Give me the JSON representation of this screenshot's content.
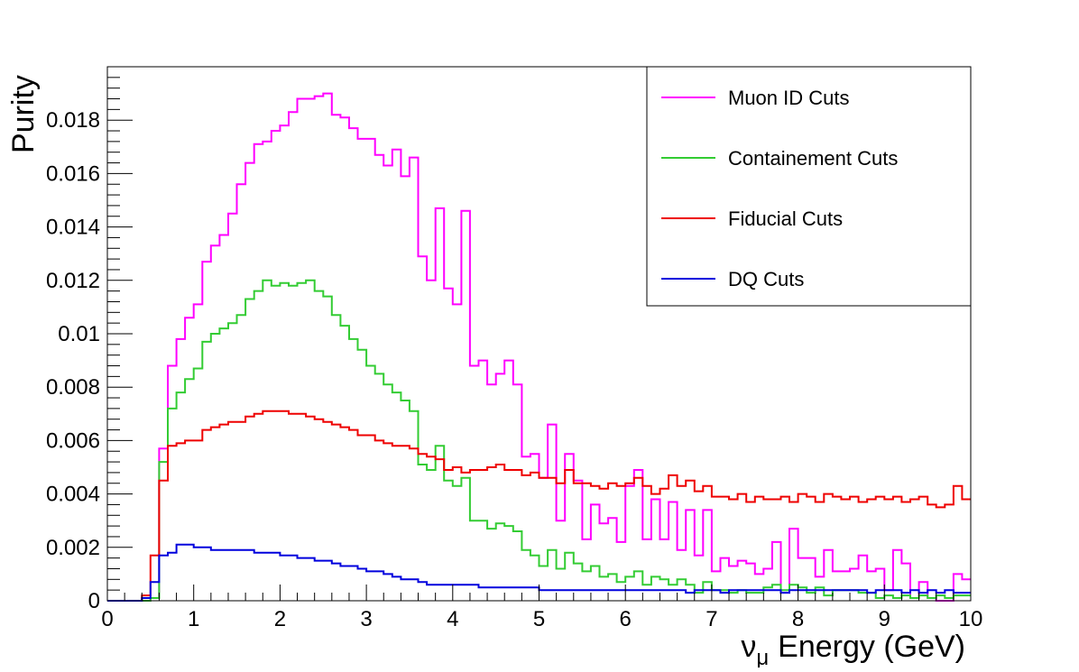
{
  "chart_data": {
    "type": "line",
    "style": "step-histogram",
    "title": "",
    "xlabel": "Energy (GeV)",
    "xlabel_symbol": "ν",
    "xlabel_subscript": "μ",
    "ylabel": "Purity",
    "xlim": [
      0,
      10
    ],
    "ylim": [
      0,
      0.02
    ],
    "x_ticks": [
      0,
      1,
      2,
      3,
      4,
      5,
      6,
      7,
      8,
      9,
      10
    ],
    "x_tick_labels": [
      "0",
      "1",
      "2",
      "3",
      "4",
      "5",
      "6",
      "7",
      "8",
      "9",
      "10"
    ],
    "y_ticks": [
      0,
      0.002,
      0.004,
      0.006,
      0.008,
      0.01,
      0.012,
      0.014,
      0.016,
      0.018
    ],
    "y_tick_labels": [
      "0",
      "0.002",
      "0.004",
      "0.006",
      "0.008",
      "0.01",
      "0.012",
      "0.014",
      "0.016",
      "0.018"
    ],
    "bin_width": 0.1,
    "grid": false,
    "legend_position": "top-right",
    "series": [
      {
        "name": "Muon ID Cuts",
        "color": "#ff00ff",
        "values": [
          0,
          0,
          0,
          0,
          0,
          0.0001,
          0.0057,
          0.0088,
          0.0098,
          0.0106,
          0.0111,
          0.0127,
          0.0133,
          0.0137,
          0.0145,
          0.0156,
          0.0164,
          0.0171,
          0.0172,
          0.0176,
          0.0178,
          0.0183,
          0.0188,
          0.0188,
          0.0189,
          0.019,
          0.0182,
          0.0181,
          0.0177,
          0.0173,
          0.0173,
          0.0167,
          0.0163,
          0.0169,
          0.0159,
          0.0166,
          0.0129,
          0.012,
          0.0147,
          0.0117,
          0.0111,
          0.0146,
          0.0088,
          0.009,
          0.0081,
          0.0085,
          0.009,
          0.0081,
          0.0054,
          0.0055,
          0.0046,
          0.0066,
          0.003,
          0.0055,
          0.0045,
          0.0023,
          0.0036,
          0.0029,
          0.0031,
          0.0022,
          0.0043,
          0.0049,
          0.0023,
          0.0038,
          0.0023,
          0.0037,
          0.0019,
          0.0034,
          0.0017,
          0.0034,
          0.0011,
          0.0016,
          0.0013,
          0.0015,
          0.0014,
          0.001,
          0.0012,
          0.0022,
          0.0003,
          0.0027,
          0.0016,
          0.0016,
          0.0009,
          0.0019,
          0.0011,
          0.0011,
          0.0012,
          0.0017,
          0.0011,
          0.0012,
          0.0004,
          0.0019,
          0.0014,
          0.0001,
          0.0007,
          0.0001,
          0,
          0,
          0.001,
          0.0008
        ]
      },
      {
        "name": "Containement Cuts",
        "color": "#33cc33",
        "values": [
          0,
          0,
          0,
          0,
          0,
          0.0001,
          0.0052,
          0.0072,
          0.0078,
          0.0083,
          0.0087,
          0.0097,
          0.01,
          0.0102,
          0.0104,
          0.0107,
          0.0113,
          0.0116,
          0.012,
          0.0118,
          0.0119,
          0.0118,
          0.0119,
          0.012,
          0.0116,
          0.0114,
          0.0107,
          0.0103,
          0.0098,
          0.0094,
          0.0088,
          0.0085,
          0.0081,
          0.0078,
          0.0075,
          0.0071,
          0.0051,
          0.0049,
          0.0058,
          0.0045,
          0.0043,
          0.0046,
          0.003,
          0.003,
          0.0027,
          0.0029,
          0.0028,
          0.0026,
          0.0019,
          0.0017,
          0.0013,
          0.0019,
          0.0012,
          0.0018,
          0.0014,
          0.0011,
          0.0013,
          0.0009,
          0.001,
          0.0007,
          0.0009,
          0.0011,
          0.0006,
          0.0009,
          0.0008,
          0.0006,
          0.0008,
          0.0006,
          0.0003,
          0.0007,
          0.0004,
          0.0004,
          0.0003,
          0.0004,
          0.0003,
          0.0003,
          0.0005,
          0.0006,
          0.0004,
          0.0006,
          0.0005,
          0.0003,
          0.0005,
          0.0002,
          0.0004,
          0.0004,
          0.0004,
          0.0003,
          0.0003,
          0.0001,
          0.0002,
          0.0001,
          0.0002,
          0.0001,
          0.0002,
          0.0001,
          0.0002,
          0.0001,
          0.0002,
          0.0002
        ]
      },
      {
        "name": "Fiducial Cuts",
        "color": "#ee0000",
        "values": [
          0,
          0,
          0,
          0,
          0.0002,
          0.0017,
          0.0045,
          0.0058,
          0.0059,
          0.006,
          0.006,
          0.0064,
          0.0065,
          0.0066,
          0.0067,
          0.0067,
          0.0069,
          0.007,
          0.0071,
          0.0071,
          0.0071,
          0.007,
          0.007,
          0.0069,
          0.0068,
          0.0067,
          0.0066,
          0.0065,
          0.0064,
          0.0062,
          0.0062,
          0.006,
          0.0059,
          0.0058,
          0.0058,
          0.0057,
          0.0055,
          0.0054,
          0.0053,
          0.0049,
          0.005,
          0.0048,
          0.0049,
          0.0049,
          0.005,
          0.0051,
          0.0049,
          0.0049,
          0.0047,
          0.0048,
          0.0046,
          0.0046,
          0.0044,
          0.0049,
          0.0044,
          0.0044,
          0.0043,
          0.0042,
          0.0044,
          0.0043,
          0.0044,
          0.0046,
          0.0043,
          0.004,
          0.0042,
          0.0047,
          0.0043,
          0.0045,
          0.0041,
          0.0043,
          0.0039,
          0.0039,
          0.0038,
          0.004,
          0.0037,
          0.0039,
          0.0038,
          0.0038,
          0.0039,
          0.0037,
          0.004,
          0.0039,
          0.0037,
          0.004,
          0.0039,
          0.0038,
          0.0039,
          0.0037,
          0.0038,
          0.0039,
          0.0038,
          0.0039,
          0.0037,
          0.0038,
          0.0039,
          0.0036,
          0.0035,
          0.0036,
          0.0043,
          0.0038
        ]
      },
      {
        "name": "DQ Cuts",
        "color": "#0000dd",
        "values": [
          0,
          0,
          0,
          0,
          0.0001,
          0.0007,
          0.0017,
          0.0018,
          0.0021,
          0.0021,
          0.002,
          0.002,
          0.0019,
          0.0019,
          0.0019,
          0.0019,
          0.0019,
          0.0018,
          0.0018,
          0.0018,
          0.0017,
          0.0017,
          0.0016,
          0.0016,
          0.0015,
          0.0015,
          0.0014,
          0.0013,
          0.0013,
          0.0012,
          0.0011,
          0.0011,
          0.001,
          0.0009,
          0.0008,
          0.0008,
          0.0007,
          0.0006,
          0.0006,
          0.0006,
          0.0006,
          0.0006,
          0.0006,
          0.0005,
          0.0005,
          0.0005,
          0.0005,
          0.0005,
          0.0005,
          0.0005,
          0.0004,
          0.0004,
          0.0004,
          0.0004,
          0.0004,
          0.0004,
          0.0004,
          0.0004,
          0.0004,
          0.0004,
          0.0004,
          0.0004,
          0.0004,
          0.0004,
          0.0004,
          0.0004,
          0.0004,
          0.0003,
          0.0004,
          0.0004,
          0.0004,
          0.0003,
          0.0004,
          0.0004,
          0.0004,
          0.0004,
          0.0004,
          0.0004,
          0.0003,
          0.0004,
          0.0004,
          0.0004,
          0.0004,
          0.0004,
          0.0004,
          0.0004,
          0.0004,
          0.0004,
          0.0003,
          0.0004,
          0.0004,
          0.0004,
          0.0003,
          0.0004,
          0.0003,
          0.0004,
          0.0003,
          0.0004,
          0.0003,
          0.0003
        ]
      }
    ]
  }
}
